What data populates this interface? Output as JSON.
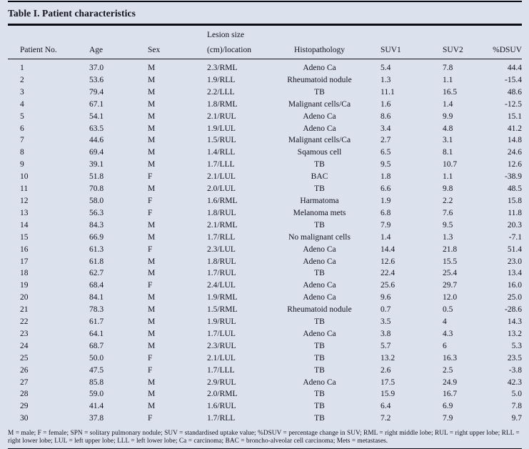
{
  "table": {
    "title": "Table I. Patient characteristics",
    "header": {
      "lesion_line1": "Lesion size",
      "labels": [
        "Patient No.",
        "Age",
        "Sex",
        "(cm)/location",
        "Histopathology",
        "SUV1",
        "SUV2",
        "%DSUV"
      ]
    },
    "rows": [
      [
        "1",
        "37.0",
        "M",
        "2.3/RML",
        "Adeno Ca",
        "5.4",
        "7.8",
        "44.4"
      ],
      [
        "2",
        "53.6",
        "M",
        "1.9/RLL",
        "Rheumatoid nodule",
        "1.3",
        "1.1",
        "-15.4"
      ],
      [
        "3",
        "79.4",
        "M",
        "2.2/LLL",
        "TB",
        "11.1",
        "16.5",
        "48.6"
      ],
      [
        "4",
        "67.1",
        "M",
        "1.8/RML",
        "Malignant cells/Ca",
        "1.6",
        "1.4",
        "-12.5"
      ],
      [
        "5",
        "54.1",
        "M",
        "2.1/RUL",
        "Adeno Ca",
        "8.6",
        "9.9",
        "15.1"
      ],
      [
        "6",
        "63.5",
        "M",
        "1.9/LUL",
        "Adeno Ca",
        "3.4",
        "4.8",
        "41.2"
      ],
      [
        "7",
        "44.6",
        "M",
        "1.5/RUL",
        "Malignant cells/Ca",
        "2.7",
        "3.1",
        "14.8"
      ],
      [
        "8",
        "69.4",
        "M",
        "1.4/RLL",
        "Sqamous cell",
        "6.5",
        "8.1",
        "24.6"
      ],
      [
        "9",
        "39.1",
        "M",
        "1.7/LLL",
        "TB",
        "9.5",
        "10.7",
        "12.6"
      ],
      [
        "10",
        "51.8",
        "F",
        "2.1/LUL",
        "BAC",
        "1.8",
        "1.1",
        "-38.9"
      ],
      [
        "11",
        "70.8",
        "M",
        "2.0/LUL",
        "TB",
        "6.6",
        "9.8",
        "48.5"
      ],
      [
        "12",
        "58.0",
        "F",
        "1.6/RML",
        "Harmatoma",
        "1.9",
        "2.2",
        "15.8"
      ],
      [
        "13",
        "56.3",
        "F",
        "1.8/RUL",
        "Melanoma mets",
        "6.8",
        "7.6",
        "11.8"
      ],
      [
        "14",
        "84.3",
        "M",
        "2.1/RML",
        "TB",
        "7.9",
        "9.5",
        "20.3"
      ],
      [
        "15",
        "66.9",
        "M",
        "1.7/RLL",
        "No malignant cells",
        "1.4",
        "1.3",
        "-7.1"
      ],
      [
        "16",
        "61.3",
        "F",
        "2.3/LUL",
        "Adeno Ca",
        "14.4",
        "21.8",
        "51.4"
      ],
      [
        "17",
        "61.8",
        "M",
        "1.8/RUL",
        "Adeno Ca",
        "12.6",
        "15.5",
        "23.0"
      ],
      [
        "18",
        "62.7",
        "M",
        "1.7/RUL",
        "TB",
        "22.4",
        "25.4",
        "13.4"
      ],
      [
        "19",
        "68.4",
        "F",
        "2.4/LUL",
        "Adeno Ca",
        "25.6",
        "29.7",
        "16.0"
      ],
      [
        "20",
        "84.1",
        "M",
        "1.9/RML",
        "Adeno Ca",
        "9.6",
        "12.0",
        "25.0"
      ],
      [
        "21",
        "78.3",
        "M",
        "1.5/RML",
        "Rheumatoid nodule",
        "0.7",
        "0.5",
        "-28.6"
      ],
      [
        "22",
        "61.7",
        "M",
        "1.9/RUL",
        "TB",
        "3.5",
        "4",
        "14.3"
      ],
      [
        "23",
        "64.1",
        "M",
        "1.7/LUL",
        "Adeno Ca",
        "3.8",
        "4.3",
        "13.2"
      ],
      [
        "24",
        "68.7",
        "M",
        "2.3/RUL",
        "TB",
        "5.7",
        "6",
        "5.3"
      ],
      [
        "25",
        "50.0",
        "F",
        "2.1/LUL",
        "TB",
        "13.2",
        "16.3",
        "23.5"
      ],
      [
        "26",
        "47.5",
        "F",
        "1.7/LLL",
        "TB",
        "2.6",
        "2.5",
        "-3.8"
      ],
      [
        "27",
        "85.8",
        "M",
        "2.9/RUL",
        "Adeno Ca",
        "17.5",
        "24.9",
        "42.3"
      ],
      [
        "28",
        "59.0",
        "M",
        "2.0/RML",
        "TB",
        "15.9",
        "16.7",
        "5.0"
      ],
      [
        "29",
        "41.4",
        "M",
        "1.6/RUL",
        "TB",
        "6.4",
        "6.9",
        "7.8"
      ],
      [
        "30",
        "37.8",
        "F",
        "1.7/RLL",
        "TB",
        "7.2",
        "7.9",
        "9.7"
      ]
    ],
    "footnote": "M = male; F = female; SPN = solitary pulmonary nodule; SUV = standardised uptake value; %DSUV = percentage change in SUV; RML = right middle lobe; RUL = right upper lobe; RLL = right lower lobe; LUL = left upper lobe; LLL = left lower lobe; Ca = carcinoma; BAC = broncho-alveolar cell carcinoma; Mets = metastases.",
    "colors": {
      "background": "#dce1ee",
      "text": "#12121c",
      "rule": "#0c0c14"
    }
  }
}
